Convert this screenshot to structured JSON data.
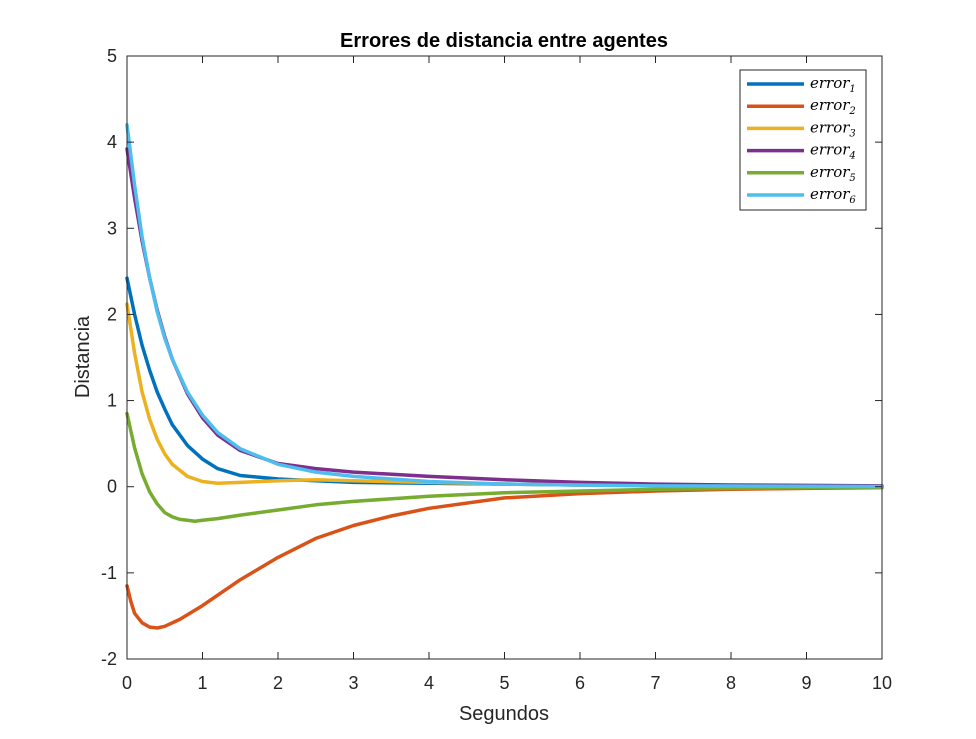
{
  "chart_data": {
    "type": "line",
    "title": "Errores de distancia entre agentes",
    "xlabel": "Segundos",
    "ylabel": "Distancia",
    "xlim": [
      0,
      10
    ],
    "ylim": [
      -2,
      5
    ],
    "xticks": [
      "0",
      "1",
      "2",
      "3",
      "4",
      "5",
      "6",
      "7",
      "8",
      "9",
      "10"
    ],
    "yticks": [
      "-2",
      "-1",
      "0",
      "1",
      "2",
      "3",
      "4",
      "5"
    ],
    "grid": false,
    "legend_position": "top-right",
    "series": [
      {
        "name": "error",
        "sub": "1",
        "color": "#0072BD",
        "x": [
          0,
          0.1,
          0.2,
          0.3,
          0.4,
          0.5,
          0.6,
          0.8,
          1.0,
          1.2,
          1.5,
          2.0,
          2.5,
          3,
          4,
          5,
          6,
          7,
          8,
          9,
          10
        ],
        "y": [
          2.42,
          2.0,
          1.64,
          1.35,
          1.1,
          0.9,
          0.72,
          0.48,
          0.32,
          0.21,
          0.13,
          0.09,
          0.07,
          0.05,
          0.04,
          0.03,
          0.02,
          0.015,
          0.01,
          0.005,
          0.003
        ]
      },
      {
        "name": "error",
        "sub": "2",
        "color": "#D95319",
        "x": [
          0,
          0.05,
          0.1,
          0.2,
          0.3,
          0.4,
          0.5,
          0.7,
          1.0,
          1.5,
          2.0,
          2.5,
          3,
          3.5,
          4,
          5,
          6,
          7,
          8,
          9,
          10
        ],
        "y": [
          -1.15,
          -1.33,
          -1.47,
          -1.58,
          -1.63,
          -1.64,
          -1.62,
          -1.54,
          -1.38,
          -1.08,
          -0.82,
          -0.6,
          -0.45,
          -0.34,
          -0.25,
          -0.13,
          -0.08,
          -0.05,
          -0.03,
          -0.02,
          -0.01
        ]
      },
      {
        "name": "error",
        "sub": "3",
        "color": "#EDB120",
        "x": [
          0,
          0.1,
          0.2,
          0.3,
          0.4,
          0.5,
          0.6,
          0.8,
          1.0,
          1.2,
          1.5,
          2.0,
          2.5,
          3,
          4,
          5,
          6,
          7,
          8,
          9,
          10
        ],
        "y": [
          2.12,
          1.55,
          1.1,
          0.78,
          0.55,
          0.38,
          0.26,
          0.12,
          0.06,
          0.04,
          0.05,
          0.07,
          0.08,
          0.07,
          0.05,
          0.03,
          0.02,
          0.01,
          0.005,
          0.003,
          0.001
        ]
      },
      {
        "name": "error",
        "sub": "4",
        "color": "#7E2F8E",
        "x": [
          0,
          0.1,
          0.2,
          0.3,
          0.4,
          0.5,
          0.6,
          0.8,
          1.0,
          1.2,
          1.5,
          2.0,
          2.5,
          3,
          4,
          5,
          6,
          7,
          8,
          9,
          10
        ],
        "y": [
          3.92,
          3.35,
          2.85,
          2.42,
          2.05,
          1.74,
          1.48,
          1.08,
          0.8,
          0.6,
          0.42,
          0.27,
          0.21,
          0.17,
          0.12,
          0.08,
          0.05,
          0.03,
          0.02,
          0.015,
          0.01
        ]
      },
      {
        "name": "error",
        "sub": "5",
        "color": "#77AC30",
        "x": [
          0,
          0.1,
          0.2,
          0.3,
          0.4,
          0.5,
          0.6,
          0.7,
          0.8,
          0.9,
          1.0,
          1.2,
          1.5,
          2.0,
          2.5,
          3,
          4,
          5,
          6,
          7,
          8,
          9,
          10
        ],
        "y": [
          0.85,
          0.45,
          0.15,
          -0.06,
          -0.2,
          -0.3,
          -0.35,
          -0.38,
          -0.39,
          -0.4,
          -0.39,
          -0.37,
          -0.33,
          -0.27,
          -0.21,
          -0.17,
          -0.11,
          -0.07,
          -0.05,
          -0.03,
          -0.02,
          -0.01,
          -0.005
        ]
      },
      {
        "name": "error",
        "sub": "6",
        "color": "#4DBEEE",
        "x": [
          0,
          0.1,
          0.2,
          0.3,
          0.4,
          0.5,
          0.6,
          0.8,
          1.0,
          1.2,
          1.5,
          2.0,
          2.5,
          3,
          4,
          5,
          6,
          7,
          8,
          9,
          10
        ],
        "y": [
          4.2,
          3.5,
          2.9,
          2.42,
          2.03,
          1.72,
          1.48,
          1.1,
          0.83,
          0.63,
          0.44,
          0.26,
          0.17,
          0.12,
          0.06,
          0.03,
          0.02,
          0.01,
          0.008,
          0.005,
          0.003
        ]
      }
    ]
  }
}
